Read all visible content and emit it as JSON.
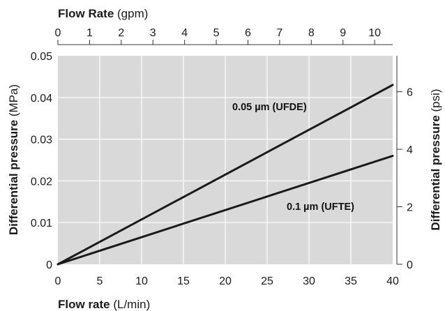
{
  "chart_data": {
    "type": "line",
    "bottom_axis": {
      "title_bold": "Flow rate",
      "title_unit": " (L/min)",
      "range": [
        0,
        40
      ],
      "ticks": [
        0,
        5,
        10,
        15,
        20,
        25,
        30,
        35,
        40
      ],
      "tick_labels": [
        "0",
        "5",
        "10",
        "15",
        "20",
        "25",
        "30",
        "35",
        "40"
      ]
    },
    "top_axis": {
      "title_bold": "Flow Rate",
      "title_unit": " (gpm)",
      "range": [
        0,
        10.57
      ],
      "ticks": [
        0,
        1,
        2,
        3,
        4,
        5,
        6,
        7,
        8,
        9,
        10
      ],
      "tick_labels": [
        "0",
        "1",
        "2",
        "3",
        "4",
        "5",
        "6",
        "7",
        "8",
        "9",
        "10"
      ]
    },
    "left_axis": {
      "title_bold": "Differential pressure",
      "title_unit": " (MPa)",
      "range": [
        0,
        0.05
      ],
      "ticks": [
        0,
        0.01,
        0.02,
        0.03,
        0.04,
        0.05
      ],
      "tick_labels": [
        "0",
        "0.01",
        "0.02",
        "0.03",
        "0.04",
        "0.05"
      ]
    },
    "right_axis": {
      "title_bold": "Differential pressure",
      "title_unit": " (psi)",
      "range": [
        0,
        7.25
      ],
      "ticks": [
        0,
        2,
        4,
        6
      ],
      "tick_labels": [
        "0",
        "2",
        "4",
        "6"
      ]
    },
    "grid": true,
    "background": "#d9d9d9",
    "line_color": "#1a1a1a",
    "series": [
      {
        "name": "0.05 µm  (UFDE)",
        "x": [
          0,
          40
        ],
        "y": [
          0,
          0.043
        ]
      },
      {
        "name": "0.1 µm (UFTE)",
        "x": [
          0,
          40
        ],
        "y": [
          0,
          0.026
        ]
      }
    ]
  }
}
